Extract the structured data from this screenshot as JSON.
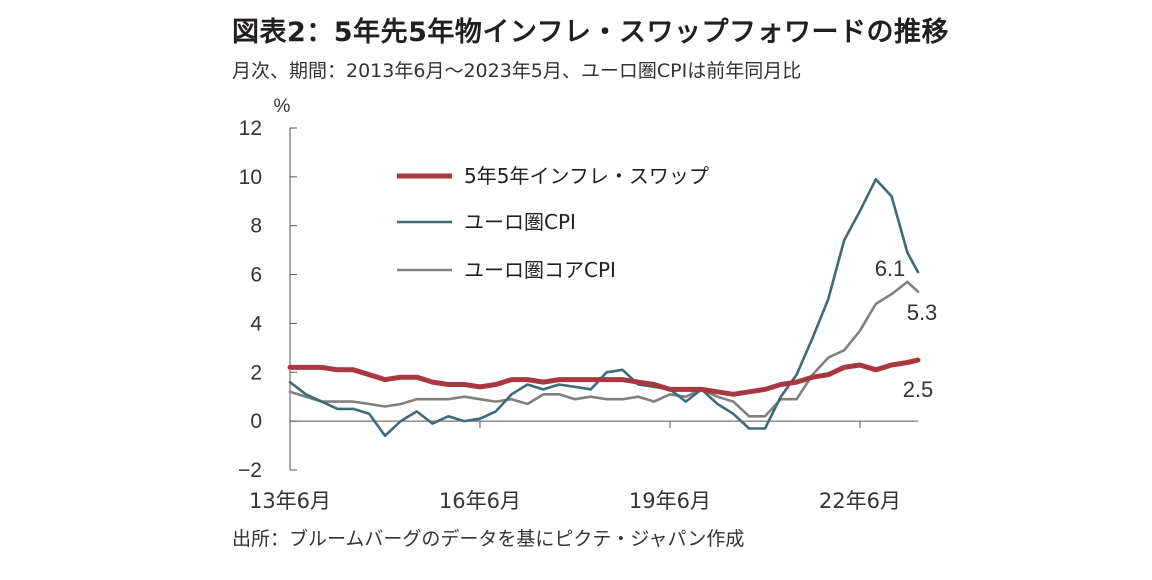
{
  "title": "図表2：5年先5年物インフレ・スワップフォワードの推移",
  "subtitle": "月次、期間：2013年6月～2023年5月、ユーロ圏CPIは前年同月比",
  "source": "出所：ブルームバーグのデータを基にピクテ・ジャパン作成",
  "chart_data": {
    "type": "line",
    "ylabel": "%",
    "ylim": [
      -2,
      12
    ],
    "yticks": [
      "12",
      "10",
      "8",
      "6",
      "4",
      "2",
      "0",
      "−2"
    ],
    "xticks": [
      "13年6月",
      "16年6月",
      "19年6月",
      "22年6月"
    ],
    "grid": false,
    "legend_position": "top-left",
    "x": [
      "2013-06",
      "2013-09",
      "2013-12",
      "2014-03",
      "2014-06",
      "2014-09",
      "2014-12",
      "2015-03",
      "2015-06",
      "2015-09",
      "2015-12",
      "2016-03",
      "2016-06",
      "2016-09",
      "2016-12",
      "2017-03",
      "2017-06",
      "2017-09",
      "2017-12",
      "2018-03",
      "2018-06",
      "2018-09",
      "2018-12",
      "2019-03",
      "2019-06",
      "2019-09",
      "2019-12",
      "2020-03",
      "2020-06",
      "2020-09",
      "2020-12",
      "2021-03",
      "2021-06",
      "2021-09",
      "2021-12",
      "2022-03",
      "2022-06",
      "2022-09",
      "2022-12",
      "2023-03",
      "2023-05"
    ],
    "series": [
      {
        "name": "5年5年インフレ・スワップ",
        "color": "#a8373f",
        "values": [
          2.2,
          2.2,
          2.2,
          2.1,
          2.1,
          1.9,
          1.7,
          1.8,
          1.8,
          1.6,
          1.5,
          1.5,
          1.4,
          1.5,
          1.7,
          1.7,
          1.6,
          1.7,
          1.7,
          1.7,
          1.7,
          1.7,
          1.6,
          1.5,
          1.3,
          1.3,
          1.3,
          1.2,
          1.1,
          1.2,
          1.3,
          1.5,
          1.6,
          1.8,
          1.9,
          2.2,
          2.3,
          2.1,
          2.3,
          2.4,
          2.5
        ]
      },
      {
        "name": "ユーロ圏CPI",
        "color": "#3d6b77",
        "values": [
          1.6,
          1.1,
          0.8,
          0.5,
          0.5,
          0.3,
          -0.6,
          0.0,
          0.4,
          -0.1,
          0.2,
          0.0,
          0.1,
          0.4,
          1.1,
          1.5,
          1.3,
          1.5,
          1.4,
          1.3,
          2.0,
          2.1,
          1.5,
          1.4,
          1.3,
          0.8,
          1.3,
          0.7,
          0.3,
          -0.3,
          -0.3,
          1.0,
          1.9,
          3.4,
          5.0,
          7.4,
          8.6,
          9.9,
          9.2,
          6.9,
          6.1
        ]
      },
      {
        "name": "ユーロ圏コアCPI",
        "color": "#808080",
        "values": [
          1.2,
          1.0,
          0.8,
          0.8,
          0.8,
          0.7,
          0.6,
          0.7,
          0.9,
          0.9,
          0.9,
          1.0,
          0.9,
          0.8,
          0.9,
          0.7,
          1.1,
          1.1,
          0.9,
          1.0,
          0.9,
          0.9,
          1.0,
          0.8,
          1.1,
          1.0,
          1.3,
          1.0,
          0.8,
          0.2,
          0.2,
          0.9,
          0.9,
          1.9,
          2.6,
          2.9,
          3.7,
          4.8,
          5.2,
          5.7,
          5.3
        ]
      }
    ],
    "end_labels": [
      "6.1",
      "5.3",
      "2.5"
    ]
  }
}
